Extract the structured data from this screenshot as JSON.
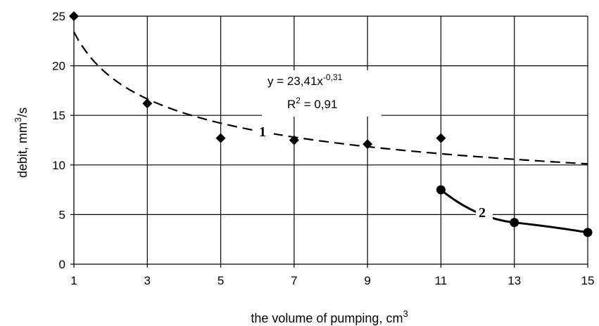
{
  "chart_data": {
    "type": "scatter",
    "xlabel": "the volume of pumping, cm",
    "xlabel_sup": "3",
    "ylabel": "debit, mm",
    "ylabel_sup": "3",
    "ylabel_suffix": "/s",
    "xlim": [
      1,
      15
    ],
    "ylim": [
      0,
      25
    ],
    "x_ticks": [
      "1",
      "3",
      "5",
      "7",
      "9",
      "11",
      "13",
      "15"
    ],
    "y_ticks": [
      "0",
      "5",
      "10",
      "15",
      "20",
      "25"
    ],
    "grid": true,
    "series": [
      {
        "label": "1",
        "marker": "diamond",
        "x": [
          1,
          3,
          5,
          7,
          9,
          11
        ],
        "y": [
          25,
          16.2,
          12.7,
          12.5,
          12.1,
          12.7
        ],
        "trendline": {
          "type": "power",
          "a": 23.41,
          "b": -0.31,
          "style": "dashed",
          "x_range": [
            1,
            15
          ]
        }
      },
      {
        "label": "2",
        "marker": "circle",
        "x": [
          11,
          13,
          15
        ],
        "y": [
          7.5,
          4.2,
          3.2
        ],
        "trendline": {
          "type": "smooth",
          "style": "solid",
          "x_range": [
            11,
            15
          ]
        }
      }
    ],
    "annotations": {
      "equation_main": "y = 23,41x",
      "equation_exp": "-0,31",
      "r2_main": "R",
      "r2_sup": "2",
      "r2_rest": " = 0,91"
    }
  }
}
